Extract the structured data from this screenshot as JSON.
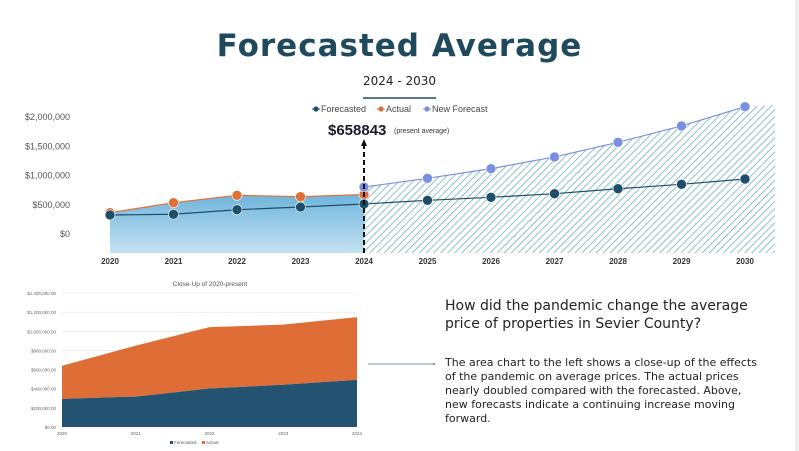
{
  "slide": {
    "title": "Forecasted Average",
    "subtitle": "2024 - 2030",
    "question": "How did the pandemic change the average price of properties in Sevier County?",
    "paragraph": "The area chart to the left shows a close-up of the effects of the pandemic on average prices. The actual prices nearly doubled compared with the forecasted. Above, new forecasts indicate a continuing increase moving forward."
  },
  "colors": {
    "forecasted": "#1f4e6b",
    "actual": "#e07034",
    "new_forecast": "#7b8fe0",
    "area_blue": "#7fbfe0",
    "hatch": "#5aa8b8",
    "title": "#1f4a5e"
  },
  "chart_data": [
    {
      "type": "line",
      "title": "Forecasted Average",
      "subtitle": "2024 - 2030",
      "legend_position": "top-center",
      "x": [
        "2020",
        "2021",
        "2022",
        "2023",
        "2024",
        "2025",
        "2026",
        "2027",
        "2028",
        "2029",
        "2030"
      ],
      "y_ticks": [
        "$0",
        "$500,000",
        "$1,000,000",
        "$1,500,000",
        "$2,000,000"
      ],
      "ylim": [
        -350000,
        2200000
      ],
      "series": [
        {
          "name": "Forecasted",
          "values": [
            308000,
            320000,
            398000,
            444000,
            496000,
            559000,
            610000,
            672000,
            757000,
            832000,
            923000
          ]
        },
        {
          "name": "Actual",
          "values": [
            347000,
            518000,
            644000,
            621000,
            658843,
            null,
            null,
            null,
            null,
            null,
            null
          ]
        },
        {
          "name": "New Forecast",
          "values": [
            null,
            null,
            null,
            null,
            786000,
            935000,
            1100000,
            1300000,
            1550000,
            1830000,
            2160000
          ]
        }
      ],
      "annotation": {
        "value": "$658843",
        "note": "(present average)",
        "x": "2024"
      }
    },
    {
      "type": "area",
      "stacked": true,
      "title": "Close-Up of 2020-present",
      "x": [
        "2020",
        "2021",
        "2022",
        "2023",
        "2024"
      ],
      "y_ticks": [
        "$0.00",
        "$200,000.00",
        "$400,000.00",
        "$600,000.00",
        "$800,000.00",
        "$1,000,000.00",
        "$1,200,000.00",
        "$1,400,000.00"
      ],
      "ylim": [
        0,
        1400000
      ],
      "legend_position": "bottom",
      "series": [
        {
          "name": "Forecasted",
          "values": [
            294000,
            318000,
            402000,
            441000,
            493000
          ]
        },
        {
          "name": "Actual",
          "values": [
            346000,
            532000,
            641000,
            629000,
            655000
          ]
        }
      ]
    }
  ]
}
